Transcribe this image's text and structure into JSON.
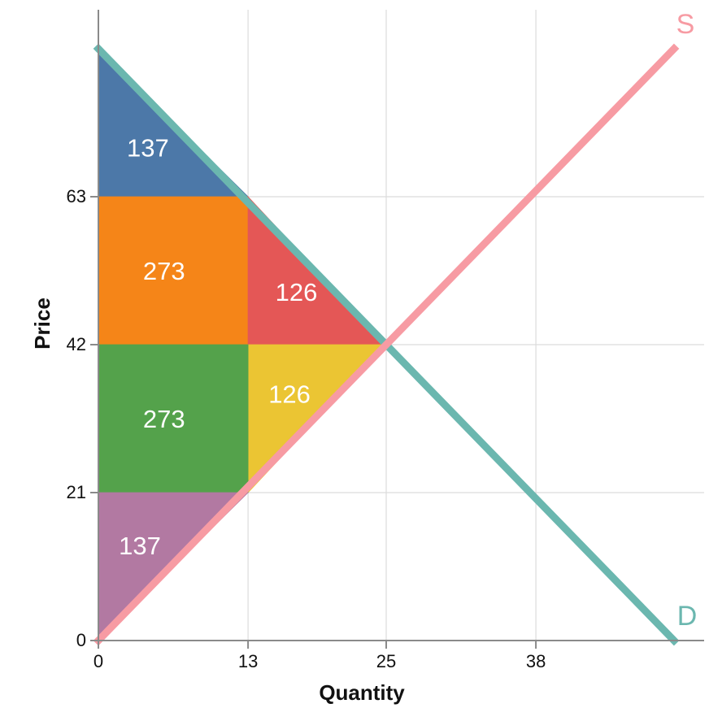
{
  "chart_data": {
    "type": "area",
    "xlabel": "Quantity",
    "ylabel": "Price",
    "xlim": [
      0,
      50
    ],
    "ylim": [
      0,
      85
    ],
    "x_ticks": [
      {
        "value": 0,
        "label": "0"
      },
      {
        "value": 13,
        "label": "13"
      },
      {
        "value": 25,
        "label": "25"
      },
      {
        "value": 38,
        "label": "38"
      }
    ],
    "y_ticks": [
      {
        "value": 0,
        "label": "0"
      },
      {
        "value": 21,
        "label": "21"
      },
      {
        "value": 42,
        "label": "42"
      },
      {
        "value": 63,
        "label": "63"
      }
    ],
    "grid": true,
    "series": [
      {
        "name": "D",
        "color": "#6BB7AF",
        "points": [
          [
            0,
            84
          ],
          [
            50,
            0
          ]
        ]
      },
      {
        "name": "S",
        "color": "#F79BA3",
        "points": [
          [
            0,
            0
          ],
          [
            50,
            84
          ]
        ]
      }
    ],
    "regions": [
      {
        "label": "137",
        "value": 137,
        "color": "#4C78A8",
        "polygon": [
          [
            0,
            84
          ],
          [
            0,
            63
          ],
          [
            13,
            63
          ]
        ],
        "label_at": [
          4.3,
          70
        ]
      },
      {
        "label": "273",
        "value": 273,
        "color": "#F58518",
        "polygon": [
          [
            0,
            63
          ],
          [
            13,
            63
          ],
          [
            13,
            42
          ],
          [
            0,
            42
          ]
        ],
        "label_at": [
          5.7,
          52.5
        ]
      },
      {
        "label": "126",
        "value": 126,
        "color": "#E45756",
        "polygon": [
          [
            13,
            63
          ],
          [
            25,
            42
          ],
          [
            13,
            42
          ]
        ],
        "label_at": [
          17.2,
          49.5
        ]
      },
      {
        "label": "126",
        "value": 126,
        "color": "#EBC533",
        "polygon": [
          [
            13,
            42
          ],
          [
            25,
            42
          ],
          [
            13,
            21
          ]
        ],
        "label_at": [
          16.6,
          35
        ]
      },
      {
        "label": "273",
        "value": 273,
        "color": "#54A24B",
        "polygon": [
          [
            0,
            42
          ],
          [
            13,
            42
          ],
          [
            13,
            21
          ],
          [
            0,
            21
          ]
        ],
        "label_at": [
          5.7,
          31.5
        ]
      },
      {
        "label": "137",
        "value": 137,
        "color": "#B279A2",
        "polygon": [
          [
            0,
            21
          ],
          [
            13,
            21
          ],
          [
            0,
            0
          ]
        ],
        "label_at": [
          3.6,
          13.5
        ]
      }
    ]
  }
}
